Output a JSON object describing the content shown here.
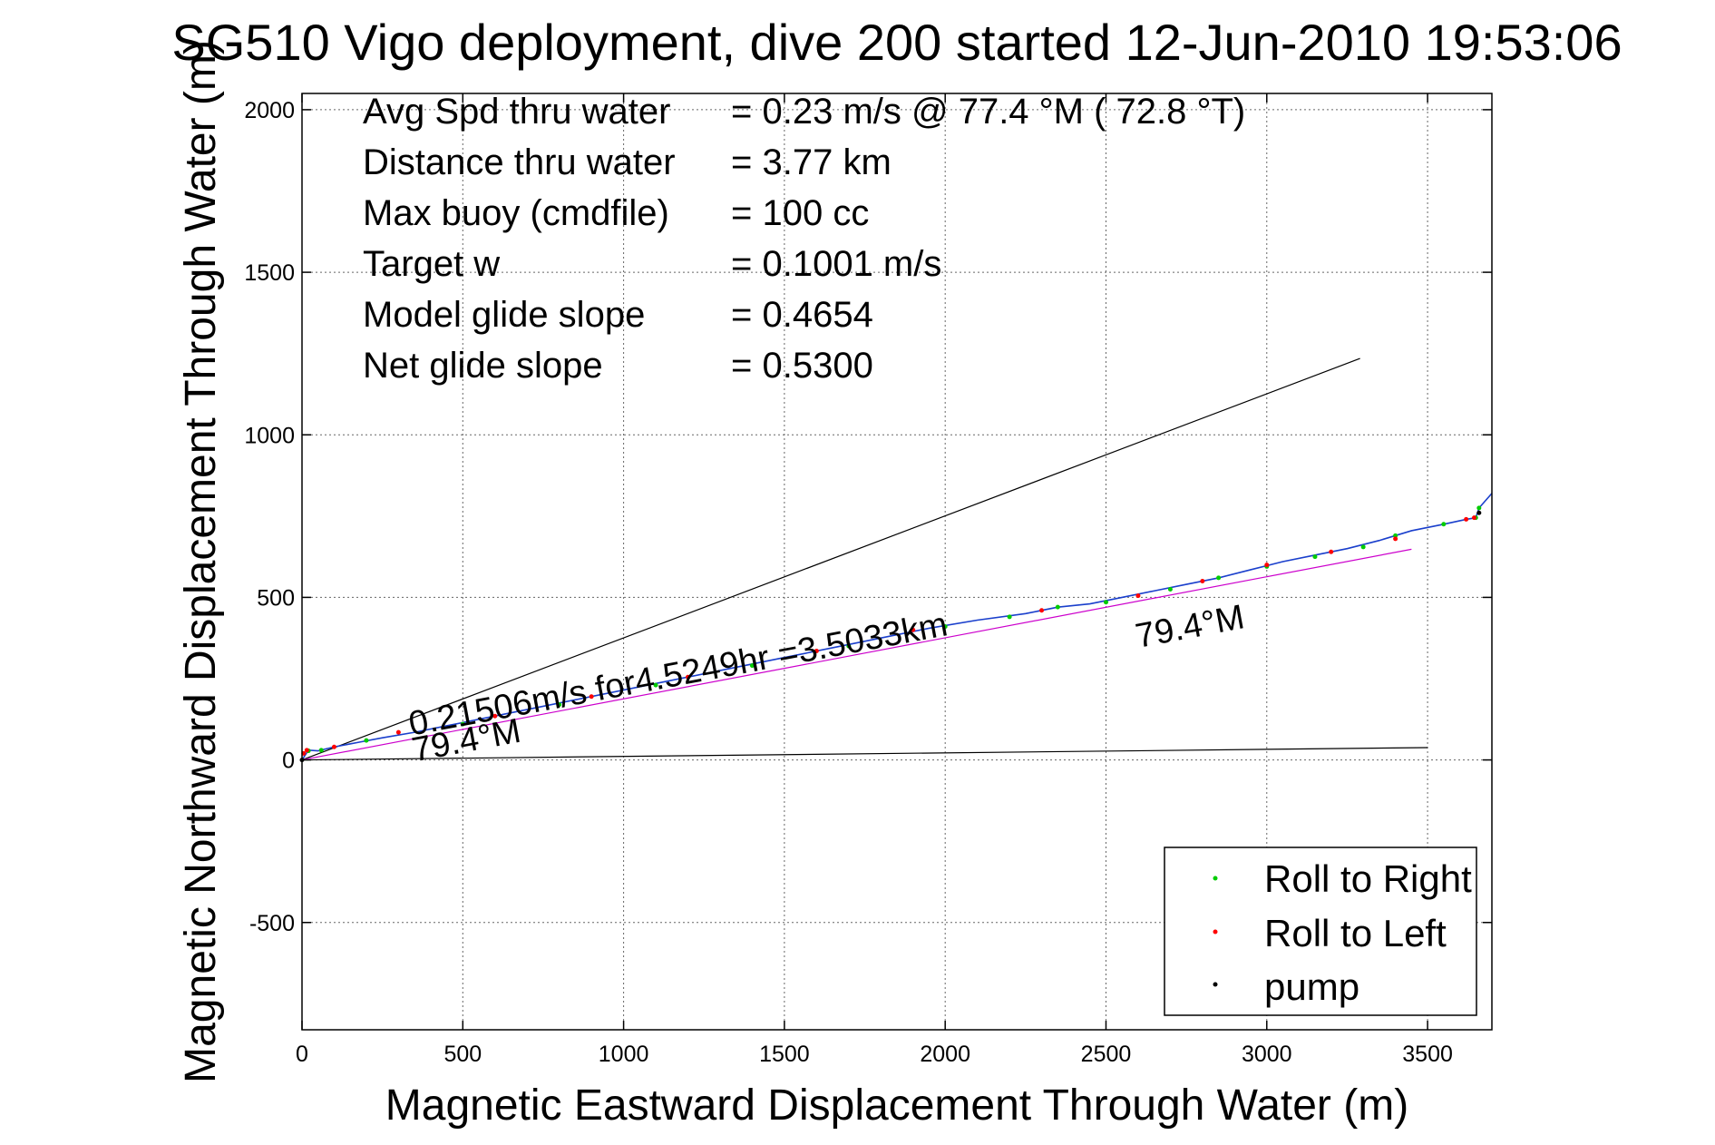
{
  "chart_data": {
    "type": "line",
    "title": "SG510 Vigo deployment, dive 200 started 12-Jun-2010 19:53:06",
    "xlabel": "Magnetic Eastward Displacement Through Water (m)",
    "ylabel": "Magnetic Northward Displacement Through Water (m)",
    "xlim": [
      0,
      3700
    ],
    "ylim": [
      -830,
      2050
    ],
    "xticks": [
      0,
      500,
      1000,
      1500,
      2000,
      2500,
      3000,
      3500
    ],
    "yticks": [
      -500,
      0,
      500,
      1000,
      1500,
      2000
    ],
    "grid": true,
    "legend_position": "bottom-right",
    "info_rows": [
      {
        "label": "Avg Spd thru water",
        "value": "=  0.23 m/s @  77.4 °M ( 72.8 °T)"
      },
      {
        "label": "Distance thru water",
        "value": "=  3.77 km"
      },
      {
        "label": "Max buoy (cmdfile)",
        "value": "= 100 cc"
      },
      {
        "label": "Target w",
        "value": "= 0.1001 m/s"
      },
      {
        "label": "Model glide slope",
        "value": "= 0.4654"
      },
      {
        "label": "Net glide slope",
        "value": "= 0.5300"
      }
    ],
    "annotations": [
      {
        "text": "0.21506m/s for4.5249hr =3.5033km",
        "x": 340,
        "y": 75,
        "angle_deg": -10.6,
        "font_data_size": "large"
      },
      {
        "text": "79.4°M",
        "x": 350,
        "y": -5,
        "angle_deg": -10.6
      },
      {
        "text": "79.4°M",
        "x": 2600,
        "y": 345,
        "angle_deg": -10.6
      }
    ],
    "guide_lines": [
      {
        "name": "upper-bound",
        "color": "#000000",
        "x": [
          0,
          3290
        ],
        "y": [
          0,
          1235
        ]
      },
      {
        "name": "lower-bound",
        "color": "#000000",
        "x": [
          0,
          3500
        ],
        "y": [
          0,
          38
        ]
      },
      {
        "name": "heading-line",
        "color": "#cc00cc",
        "x": [
          0,
          3450
        ],
        "y": [
          0,
          648
        ]
      }
    ],
    "series": [
      {
        "type": "line",
        "color": "#1a3fcc",
        "x": [
          0,
          20,
          50,
          100,
          180,
          250,
          350,
          450,
          600,
          750,
          900,
          1050,
          1200,
          1350,
          1500,
          1650,
          1800,
          1950,
          2100,
          2250,
          2350,
          2450,
          2550,
          2650,
          2750,
          2850,
          2950,
          3050,
          3150,
          3250,
          3350,
          3450,
          3550,
          3620,
          3650,
          3660,
          3700
        ],
        "y": [
          0,
          30,
          28,
          40,
          55,
          68,
          85,
          105,
          135,
          165,
          195,
          225,
          255,
          285,
          315,
          345,
          375,
          405,
          430,
          450,
          470,
          480,
          500,
          520,
          540,
          560,
          585,
          610,
          630,
          650,
          675,
          705,
          725,
          740,
          745,
          775,
          820
        ]
      },
      {
        "name": "Roll to Right",
        "type": "points",
        "color": "#00cc00",
        "x": [
          20,
          60,
          200,
          500,
          800,
          1100,
          1400,
          1700,
          2000,
          2200,
          2350,
          2500,
          2700,
          2850,
          3000,
          3150,
          3300,
          3400,
          3550,
          3650,
          3660
        ],
        "y": [
          28,
          30,
          60,
          110,
          170,
          230,
          290,
          350,
          410,
          440,
          470,
          485,
          525,
          560,
          595,
          625,
          655,
          690,
          725,
          745,
          775
        ]
      },
      {
        "name": "Roll to Left",
        "type": "points",
        "color": "#ff0000",
        "x": [
          5,
          15,
          100,
          300,
          600,
          900,
          1200,
          1600,
          1900,
          2300,
          2600,
          2800,
          3000,
          3200,
          3400,
          3620,
          3645
        ],
        "y": [
          20,
          30,
          40,
          85,
          135,
          195,
          255,
          335,
          400,
          460,
          505,
          550,
          600,
          640,
          680,
          740,
          745
        ]
      },
      {
        "name": "pump",
        "type": "points",
        "color": "#000000",
        "x": [
          0,
          3660
        ],
        "y": [
          0,
          760
        ]
      }
    ]
  }
}
